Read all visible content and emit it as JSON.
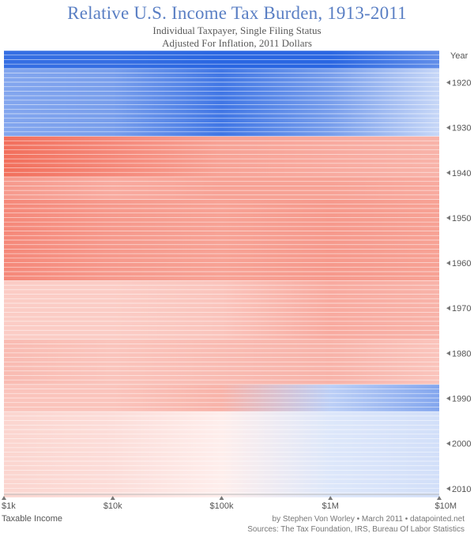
{
  "header": {
    "title": "Relative U.S. Income Tax Burden, 1913-2011",
    "subtitle_line1": "Individual Taxpayer, Single Filing Status",
    "subtitle_line2": "Adjusted For Inflation, 2011 Dollars"
  },
  "footer": {
    "credit": "by Stephen Von Worley • March 2011 • datapointed.net",
    "sources": "Sources: The Tax Foundation, IRS, Bureau Of Labor Statistics"
  },
  "chart_data": {
    "type": "heatmap",
    "title": "Relative U.S. Income Tax Burden, 1913-2011",
    "xlabel": "Taxable Income",
    "ylabel": "Year",
    "x_scale": "log",
    "x_range": [
      1000,
      10000000
    ],
    "y_range": [
      1913,
      2011
    ],
    "x_ticks": [
      {
        "value": 1000,
        "label": "$1k"
      },
      {
        "value": 10000,
        "label": "$10k"
      },
      {
        "value": 100000,
        "label": "$100k"
      },
      {
        "value": 1000000,
        "label": "$1M"
      },
      {
        "value": 10000000,
        "label": "$10M"
      }
    ],
    "y_ticks": [
      1920,
      1930,
      1940,
      1950,
      1960,
      1970,
      1980,
      1990,
      2000,
      2010
    ],
    "y_tick_labels": [
      "1920",
      "1930",
      "1940",
      "1950",
      "1960",
      "1970",
      "1980",
      "1990",
      "2000",
      "2010"
    ],
    "color_scale": {
      "higher_burden": "#f0553f",
      "neutral": "#ffffff",
      "lower_burden": "#1e5ee0"
    },
    "series_description": "One line per year; color shows relative tax burden by income level",
    "eras": [
      {
        "years": [
          1913,
          1916
        ],
        "burden": [
          -0.9,
          -0.9,
          -0.95,
          -0.95,
          -0.7
        ]
      },
      {
        "years": [
          1917,
          1931
        ],
        "burden": [
          -0.55,
          -0.6,
          -0.85,
          -0.6,
          -0.25
        ]
      },
      {
        "years": [
          1932,
          1940
        ],
        "burden": [
          0.85,
          0.7,
          0.55,
          0.5,
          0.45
        ]
      },
      {
        "years": [
          1941,
          1945
        ],
        "burden": [
          0.6,
          0.5,
          0.55,
          0.55,
          0.5
        ]
      },
      {
        "years": [
          1946,
          1963
        ],
        "burden": [
          0.7,
          0.6,
          0.55,
          0.6,
          0.55
        ]
      },
      {
        "years": [
          1964,
          1976
        ],
        "burden": [
          0.3,
          0.3,
          0.35,
          0.5,
          0.45
        ]
      },
      {
        "years": [
          1977,
          1986
        ],
        "burden": [
          0.4,
          0.35,
          0.4,
          0.45,
          0.35
        ]
      },
      {
        "years": [
          1987,
          1992
        ],
        "burden": [
          0.35,
          0.35,
          0.45,
          -0.3,
          -0.55
        ]
      },
      {
        "years": [
          1993,
          2011
        ],
        "burden": [
          0.25,
          0.2,
          0.1,
          -0.15,
          -0.2
        ]
      }
    ]
  }
}
